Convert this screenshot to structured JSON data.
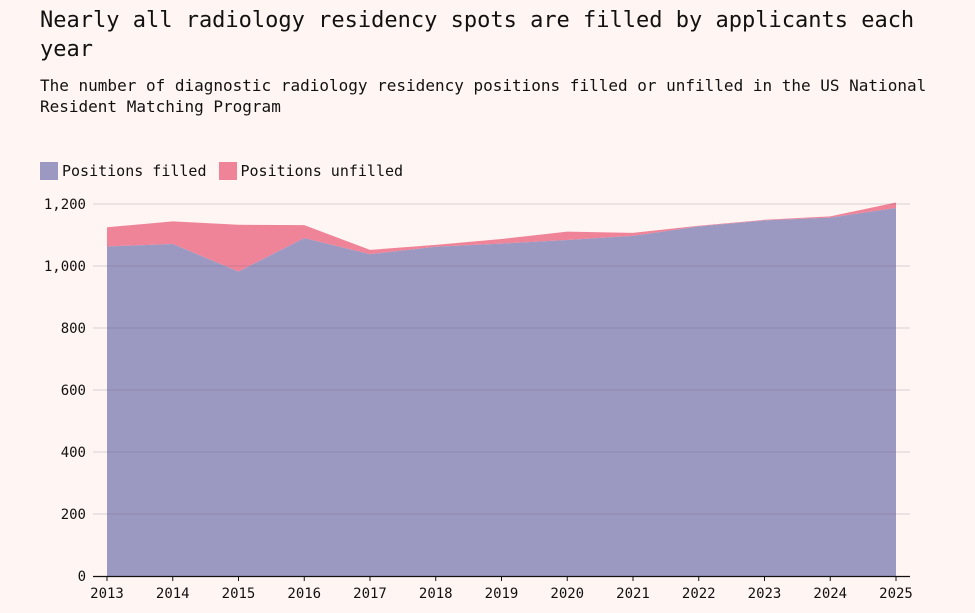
{
  "header": {
    "title": "Nearly all radiology residency spots are filled by applicants each year",
    "subtitle": "The number of diagnostic radiology residency positions filled or unfilled in the US National Resident Matching Program"
  },
  "colors": {
    "filled": "#9b98c2",
    "unfilled": "#ef8499",
    "grid": "#d9c9c6",
    "axis": "#111111",
    "background": "#fff5f2"
  },
  "chart_data": {
    "type": "area",
    "stacked": true,
    "title": "Nearly all radiology residency spots are filled by applicants each year",
    "subtitle": "The number of diagnostic radiology residency positions filled or unfilled in the US National Resident Matching Program",
    "categories": [
      "2013",
      "2014",
      "2015",
      "2016",
      "2017",
      "2018",
      "2019",
      "2020",
      "2021",
      "2022",
      "2023",
      "2024",
      "2025"
    ],
    "series": [
      {
        "name": "Positions filled",
        "values": [
          1063,
          1071,
          982,
          1090,
          1038,
          1062,
          1072,
          1084,
          1097,
          1128,
          1147,
          1156,
          1187
        ]
      },
      {
        "name": "Positions unfilled",
        "values": [
          62,
          73,
          151,
          42,
          14,
          6,
          15,
          27,
          10,
          2,
          2,
          4,
          18
        ]
      }
    ],
    "yticks": [
      "0",
      "200",
      "400",
      "600",
      "800",
      "1,000",
      "1,200"
    ],
    "ylim": [
      0,
      1200
    ],
    "grid": true,
    "legend": "top-left",
    "xlabel": "",
    "ylabel": ""
  }
}
